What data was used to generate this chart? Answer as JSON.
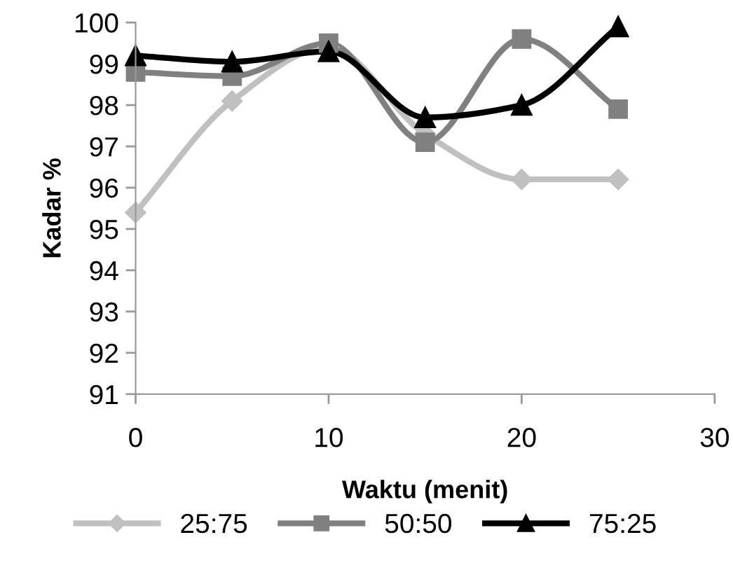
{
  "chart_data": {
    "type": "line",
    "xlabel": "Waktu (menit)",
    "ylabel": "Kadar %",
    "x": [
      0,
      5,
      10,
      15,
      20,
      25
    ],
    "series": [
      {
        "name": "25:75",
        "color": "#c0c0c0",
        "marker": "diamond",
        "values": [
          95.4,
          98.1,
          99.4,
          97.3,
          96.2,
          96.2
        ]
      },
      {
        "name": "50:50",
        "color": "#808080",
        "marker": "square",
        "values": [
          98.8,
          98.7,
          99.5,
          97.1,
          99.6,
          97.9
        ]
      },
      {
        "name": "75:25",
        "color": "#000000",
        "marker": "triangle",
        "values": [
          99.2,
          99.05,
          99.3,
          97.7,
          98.0,
          99.9
        ]
      }
    ],
    "xlim": [
      0,
      30
    ],
    "xticks": [
      0,
      10,
      20,
      30
    ],
    "ylim": [
      91,
      100
    ],
    "yticks": [
      91,
      92,
      93,
      94,
      95,
      96,
      97,
      98,
      99,
      100
    ],
    "grid": false,
    "legend": "bottom",
    "line_style": "solid"
  }
}
